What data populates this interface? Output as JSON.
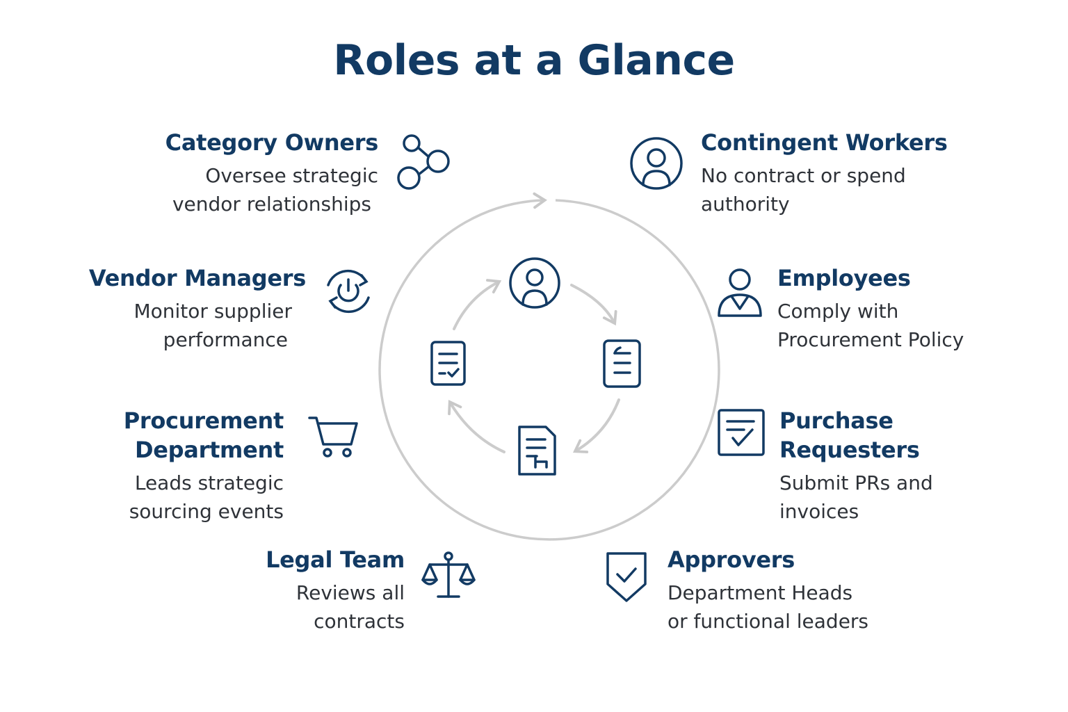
{
  "title": "Roles at a Glance",
  "colors": {
    "accent": "#123a63",
    "ring": "#cccccc",
    "text": "#2e3238"
  },
  "roles": {
    "category_owners": {
      "name": "Category Owners",
      "line1": "Oversee strategic",
      "line2": "vendor relationships",
      "icon": "network-nodes-icon"
    },
    "vendor_managers": {
      "name": "Vendor Managers",
      "line1": "Monitor supplier",
      "line2": "performance",
      "icon": "cycle-power-icon"
    },
    "procurement_department": {
      "name1": "Procurement",
      "name2": "Department",
      "line1": "Leads strategic",
      "line2": "sourcing events",
      "icon": "shopping-cart-icon"
    },
    "legal_team": {
      "name": "Legal Team",
      "line1": "Reviews all",
      "line2": "contracts",
      "icon": "scales-icon"
    },
    "contingent_workers": {
      "name": "Contingent Workers",
      "line1": "No contract or spend",
      "line2": "authority",
      "icon": "user-circle-icon"
    },
    "employees": {
      "name": "Employees",
      "line1": "Comply with",
      "line2": "Procurement Policy",
      "icon": "employee-icon"
    },
    "purchase_requesters": {
      "name1": "Purchase",
      "name2": "Requesters",
      "line1": "Submit PRs and",
      "line2": "invoices",
      "icon": "checklist-icon"
    },
    "approvers": {
      "name": "Approvers",
      "line1": "Department Heads",
      "line2": "or functional leaders",
      "icon": "shield-check-icon"
    }
  }
}
